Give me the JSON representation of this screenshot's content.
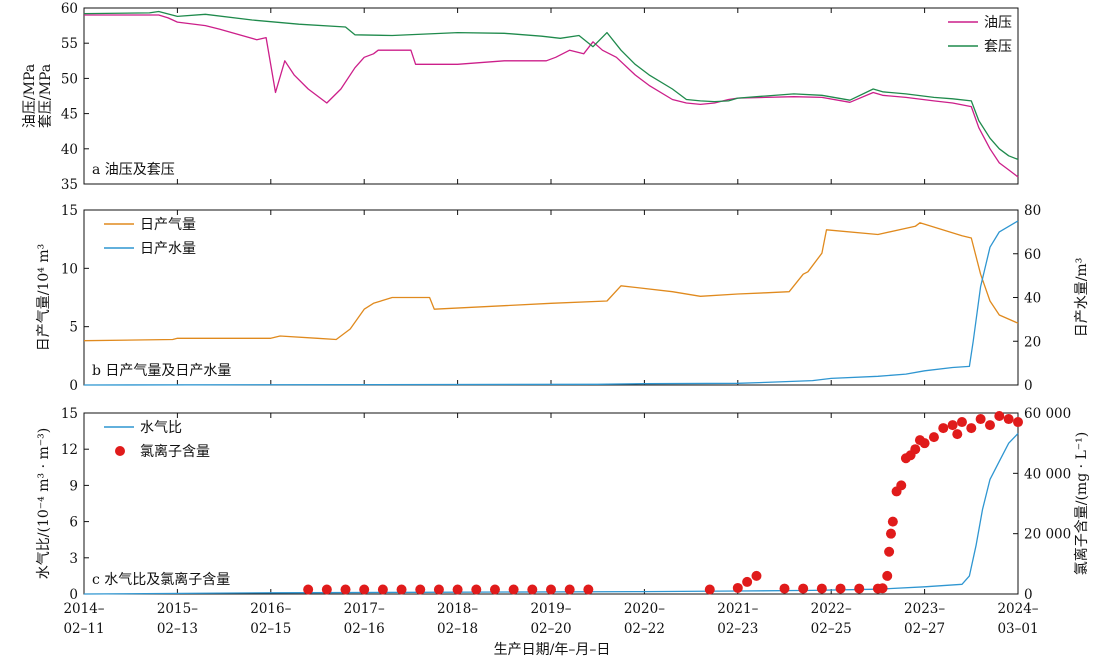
{
  "x_axis": {
    "label": "生产日期/年–月–日",
    "ticks": [
      [
        "2014–",
        "02–11"
      ],
      [
        "2015–",
        "02–13"
      ],
      [
        "2016–",
        "02–15"
      ],
      [
        "2017–",
        "02–16"
      ],
      [
        "2018–",
        "02–18"
      ],
      [
        "2019–",
        "02–20"
      ],
      [
        "2020–",
        "02–22"
      ],
      [
        "2021–",
        "02–23"
      ],
      [
        "2022–",
        "02–25"
      ],
      [
        "2023–",
        "02–27"
      ],
      [
        "2024–",
        "03–01"
      ]
    ]
  },
  "chart_data": [
    {
      "panel": "a",
      "type": "line",
      "caption": "a 油压及套压",
      "ylabel_lines": [
        "油压/MPa",
        "套压/MPa"
      ],
      "ylim": [
        35,
        60
      ],
      "yticks": [
        35,
        40,
        45,
        50,
        55,
        60
      ],
      "legend_position": "top-right",
      "series": [
        {
          "name": "油压",
          "color": "#cc1f8a",
          "x": [
            0,
            0.8,
            0.9,
            1.0,
            1.3,
            1.45,
            1.85,
            1.95,
            2.05,
            2.15,
            2.25,
            2.4,
            2.6,
            2.75,
            2.9,
            3.0,
            3.1,
            3.15,
            3.5,
            3.55,
            4.0,
            4.5,
            4.95,
            5.05,
            5.2,
            5.35,
            5.45,
            5.55,
            5.7,
            5.9,
            6.05,
            6.3,
            6.45,
            6.6,
            6.75,
            6.9,
            7.0,
            7.3,
            7.6,
            7.9,
            8.2,
            8.45,
            8.55,
            8.8,
            9.1,
            9.3,
            9.5,
            9.58,
            9.7,
            9.8,
            9.9,
            10.0
          ],
          "y": [
            59,
            59,
            58.6,
            58,
            57.5,
            57,
            55.5,
            55.8,
            48,
            52.5,
            50.5,
            48.5,
            46.5,
            48.5,
            51.5,
            53,
            53.5,
            54,
            54,
            52,
            52,
            52.5,
            52.5,
            53,
            54,
            53.5,
            55.2,
            54,
            53,
            50.5,
            49,
            47,
            46.5,
            46.3,
            46.5,
            47,
            47.2,
            47.3,
            47.4,
            47.3,
            46.6,
            48,
            47.6,
            47.3,
            46.8,
            46.5,
            46,
            43,
            40,
            38,
            37,
            36
          ]
        },
        {
          "name": "套压",
          "color": "#1f8a4c",
          "x": [
            0,
            0.7,
            0.8,
            1.0,
            1.3,
            1.8,
            2.3,
            2.8,
            2.9,
            3.3,
            4.0,
            4.5,
            4.9,
            5.1,
            5.3,
            5.45,
            5.6,
            5.75,
            5.9,
            6.05,
            6.3,
            6.45,
            6.6,
            6.75,
            6.9,
            7.0,
            7.3,
            7.6,
            7.9,
            8.2,
            8.45,
            8.55,
            8.8,
            9.1,
            9.3,
            9.5,
            9.58,
            9.7,
            9.8,
            9.9,
            10.0
          ],
          "y": [
            59.2,
            59.3,
            59.5,
            58.8,
            59.1,
            58.3,
            57.7,
            57.3,
            56.2,
            56.1,
            56.5,
            56.4,
            56,
            55.7,
            56.1,
            54.5,
            56.5,
            54,
            52,
            50.5,
            48.5,
            47,
            46.8,
            46.7,
            46.8,
            47.2,
            47.5,
            47.8,
            47.6,
            46.9,
            48.5,
            48.1,
            47.8,
            47.3,
            47.1,
            46.8,
            44,
            41.5,
            40,
            39,
            38.5
          ]
        }
      ]
    },
    {
      "panel": "b",
      "type": "line",
      "caption": "b 日产气量及日产水量",
      "ylabel_left": "日产气量/10⁴ m³",
      "ylabel_right": "日产水量/m³",
      "ylim_left": [
        0,
        15
      ],
      "yticks_left": [
        0,
        5,
        10,
        15
      ],
      "ylim_right": [
        0,
        80
      ],
      "yticks_right": [
        0,
        20,
        40,
        60,
        80
      ],
      "legend_position": "top-left",
      "series": [
        {
          "name": "日产气量",
          "axis": "left",
          "color": "#e08a1e",
          "x": [
            0,
            0.95,
            1.0,
            2.0,
            2.1,
            2.5,
            2.7,
            2.85,
            3.0,
            3.1,
            3.3,
            3.7,
            3.75,
            4.5,
            5.0,
            5.6,
            5.75,
            6.3,
            6.6,
            7.0,
            7.3,
            7.55,
            7.7,
            7.75,
            7.9,
            7.95,
            8.5,
            8.9,
            8.95,
            9.4,
            9.5,
            9.6,
            9.7,
            9.8,
            10.0
          ],
          "y": [
            3.8,
            3.9,
            4.0,
            4.0,
            4.2,
            4.0,
            3.9,
            4.8,
            6.5,
            7.0,
            7.5,
            7.5,
            6.5,
            6.8,
            7.0,
            7.2,
            8.5,
            8.0,
            7.6,
            7.8,
            7.9,
            8.0,
            9.5,
            9.7,
            11.3,
            13.3,
            12.9,
            13.6,
            13.9,
            12.8,
            12.6,
            9.5,
            7.2,
            6.0,
            5.3
          ]
        },
        {
          "name": "日产水量",
          "axis": "right",
          "color": "#2f96d1",
          "x": [
            0,
            5.5,
            6.0,
            7.0,
            7.3,
            7.8,
            8.0,
            8.5,
            8.8,
            9.0,
            9.3,
            9.48,
            9.52,
            9.6,
            9.7,
            9.8,
            10.0
          ],
          "y": [
            0,
            0.3,
            0.6,
            0.8,
            1.2,
            2.0,
            3.0,
            4.0,
            5.0,
            6.5,
            8.0,
            8.5,
            20,
            45,
            63,
            70,
            75
          ]
        }
      ]
    },
    {
      "panel": "c",
      "type": "scatter",
      "caption": "c 水气比及氯离子含量",
      "ylabel_left": "水气比/(10⁻⁴ m³ · m⁻³)",
      "ylabel_right": "氯离子含量/(mg · L⁻¹)",
      "ylim_left": [
        0,
        15
      ],
      "yticks_left": [
        0,
        3,
        6,
        9,
        12,
        15
      ],
      "ylim_right": [
        0,
        60000
      ],
      "yticks_right": [
        0,
        20000,
        40000,
        60000
      ],
      "ytick_labels_right": [
        "0",
        "20 000",
        "40 000",
        "60 000"
      ],
      "legend_position": "top-left",
      "series": [
        {
          "name": "水气比",
          "axis": "left",
          "kind": "line",
          "color": "#2f96d1",
          "x": [
            0,
            2.0,
            6.0,
            7.0,
            7.8,
            8.5,
            9.0,
            9.4,
            9.48,
            9.55,
            9.62,
            9.7,
            9.8,
            9.9,
            10.0
          ],
          "y": [
            0,
            0.1,
            0.2,
            0.25,
            0.3,
            0.4,
            0.6,
            0.8,
            1.5,
            4.0,
            7.0,
            9.5,
            11.0,
            12.5,
            13.3
          ]
        },
        {
          "name": "氯离子含量",
          "axis": "right",
          "kind": "scatter",
          "color": "#e01b1b",
          "x": [
            2.4,
            2.6,
            2.8,
            3.0,
            3.2,
            3.4,
            3.6,
            3.8,
            4.0,
            4.2,
            4.4,
            4.6,
            4.8,
            5.0,
            5.2,
            5.4,
            6.7,
            7.0,
            7.1,
            7.2,
            7.5,
            7.7,
            7.9,
            8.1,
            8.3,
            8.5,
            8.55,
            8.6,
            8.62,
            8.64,
            8.66,
            8.7,
            8.75,
            8.8,
            8.85,
            8.9,
            8.95,
            9.0,
            9.1,
            9.2,
            9.3,
            9.35,
            9.4,
            9.5,
            9.6,
            9.7,
            9.8,
            9.9,
            10.0
          ],
          "y": [
            1500,
            1500,
            1500,
            1500,
            1500,
            1500,
            1500,
            1500,
            1500,
            1500,
            1500,
            1500,
            1500,
            1500,
            1500,
            1500,
            1500,
            2000,
            4000,
            6000,
            1800,
            1800,
            1800,
            1800,
            1800,
            1800,
            1900,
            6000,
            14000,
            20000,
            24000,
            34000,
            36000,
            45000,
            46000,
            48000,
            51000,
            50000,
            52000,
            55000,
            56000,
            53000,
            57000,
            55000,
            58000,
            56000,
            59000,
            58000,
            57000
          ]
        }
      ]
    }
  ]
}
